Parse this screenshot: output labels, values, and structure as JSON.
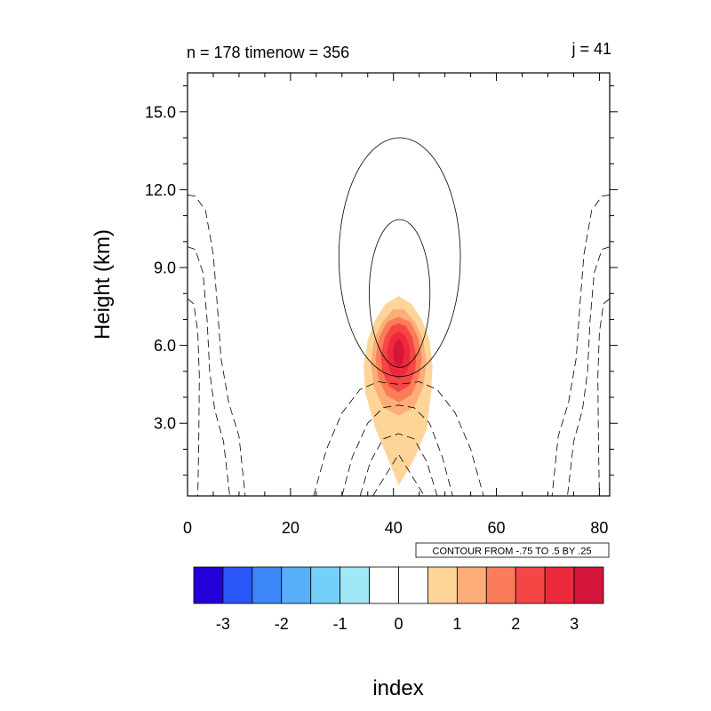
{
  "header": {
    "left": "n = 178 timenow = 356",
    "right": "j = 41"
  },
  "chart_data": {
    "type": "heatmap",
    "xlabel": "index",
    "ylabel": "Height (km)",
    "xlim": [
      0,
      82
    ],
    "ylim": [
      0.2,
      16.5
    ],
    "x_ticks": [
      0,
      20,
      40,
      60,
      80
    ],
    "x_tick_labels": [
      "0",
      "20",
      "40",
      "60",
      "80"
    ],
    "y_ticks": [
      3,
      6,
      9,
      12,
      15
    ],
    "y_tick_labels": [
      "3.0",
      "6.0",
      "9.0",
      "12.0",
      "15.0"
    ],
    "contour_info": "CONTOUR FROM -.75 TO .5 BY .25",
    "colorbar": {
      "levels": [
        -3.5,
        -3,
        -2.5,
        -2,
        -1.5,
        -1,
        -0.5,
        0,
        0.5,
        1,
        1.5,
        2,
        2.5,
        3,
        3.5
      ],
      "colors": [
        "#2200d8",
        "#2a56f8",
        "#3c88f8",
        "#58aef8",
        "#74d0f8",
        "#a0e8f8",
        "#ffffff",
        "#ffffff",
        "#fed598",
        "#fdae78",
        "#fb7c58",
        "#f54544",
        "#ec2a3c",
        "#d4163a"
      ],
      "tick_values": [
        -3,
        -2,
        -1,
        0,
        1,
        2,
        3
      ],
      "tick_labels": [
        "-3",
        "-2",
        "-1",
        "0",
        "1",
        "2",
        "3"
      ]
    },
    "filled_field": {
      "center_x": 41,
      "center_y_km": 5.8,
      "peak_value": 3.3,
      "note_levels": [
        0.5,
        1,
        1.5,
        2,
        2.5,
        3
      ]
    },
    "line_contours": {
      "positive_levels": [
        0.25,
        0.5
      ],
      "negative_levels": [
        -0.25,
        -0.5,
        -0.75
      ],
      "positive_style": "solid",
      "negative_style": "dashed"
    },
    "grid": false
  }
}
